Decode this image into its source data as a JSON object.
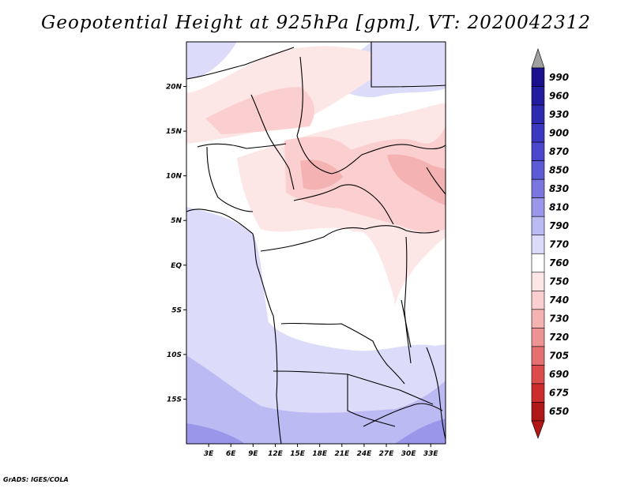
{
  "title": "Geopotential Height at 925hPa [gpm], VT: 2020042312",
  "credit": "GrADS: IGES/COLA",
  "map": {
    "extent": {
      "lon_min": 0,
      "lon_max": 35,
      "lat_min": -20,
      "lat_max": 25
    },
    "lon_ticks": [
      "3E",
      "6E",
      "9E",
      "12E",
      "15E",
      "18E",
      "21E",
      "24E",
      "27E",
      "30E",
      "33E"
    ],
    "lat_ticks": [
      "20N",
      "15N",
      "10N",
      "5N",
      "EQ",
      "5S",
      "10S",
      "15S"
    ]
  },
  "colorbar": {
    "levels": [
      "990",
      "960",
      "930",
      "900",
      "870",
      "850",
      "830",
      "810",
      "790",
      "770",
      "760",
      "750",
      "740",
      "730",
      "720",
      "705",
      "690",
      "675",
      "650"
    ],
    "colors": [
      "#1a0f8c",
      "#221c9e",
      "#2c2aaf",
      "#3a38c0",
      "#4a47cd",
      "#5d5ad6",
      "#7a76e0",
      "#9a97ea",
      "#bcbaf3",
      "#dcdcfa",
      "#ffffff",
      "#fde6e6",
      "#fbcfcf",
      "#f5b2b2",
      "#ee9393",
      "#e67070",
      "#dc4c4c",
      "#cc2c2c",
      "#b01818"
    ],
    "top_arrow_color": "#a0a0a0",
    "bottom_arrow_color": "#b01818"
  },
  "field_colors": {
    "white": "#ffffff",
    "lightblue": "#dcdcfa",
    "midblue": "#bcbaf3",
    "deepblue": "#9a97ea",
    "pink": "#fde6e6",
    "salmon": "#fbcfcf",
    "rose": "#f5b2b2"
  }
}
